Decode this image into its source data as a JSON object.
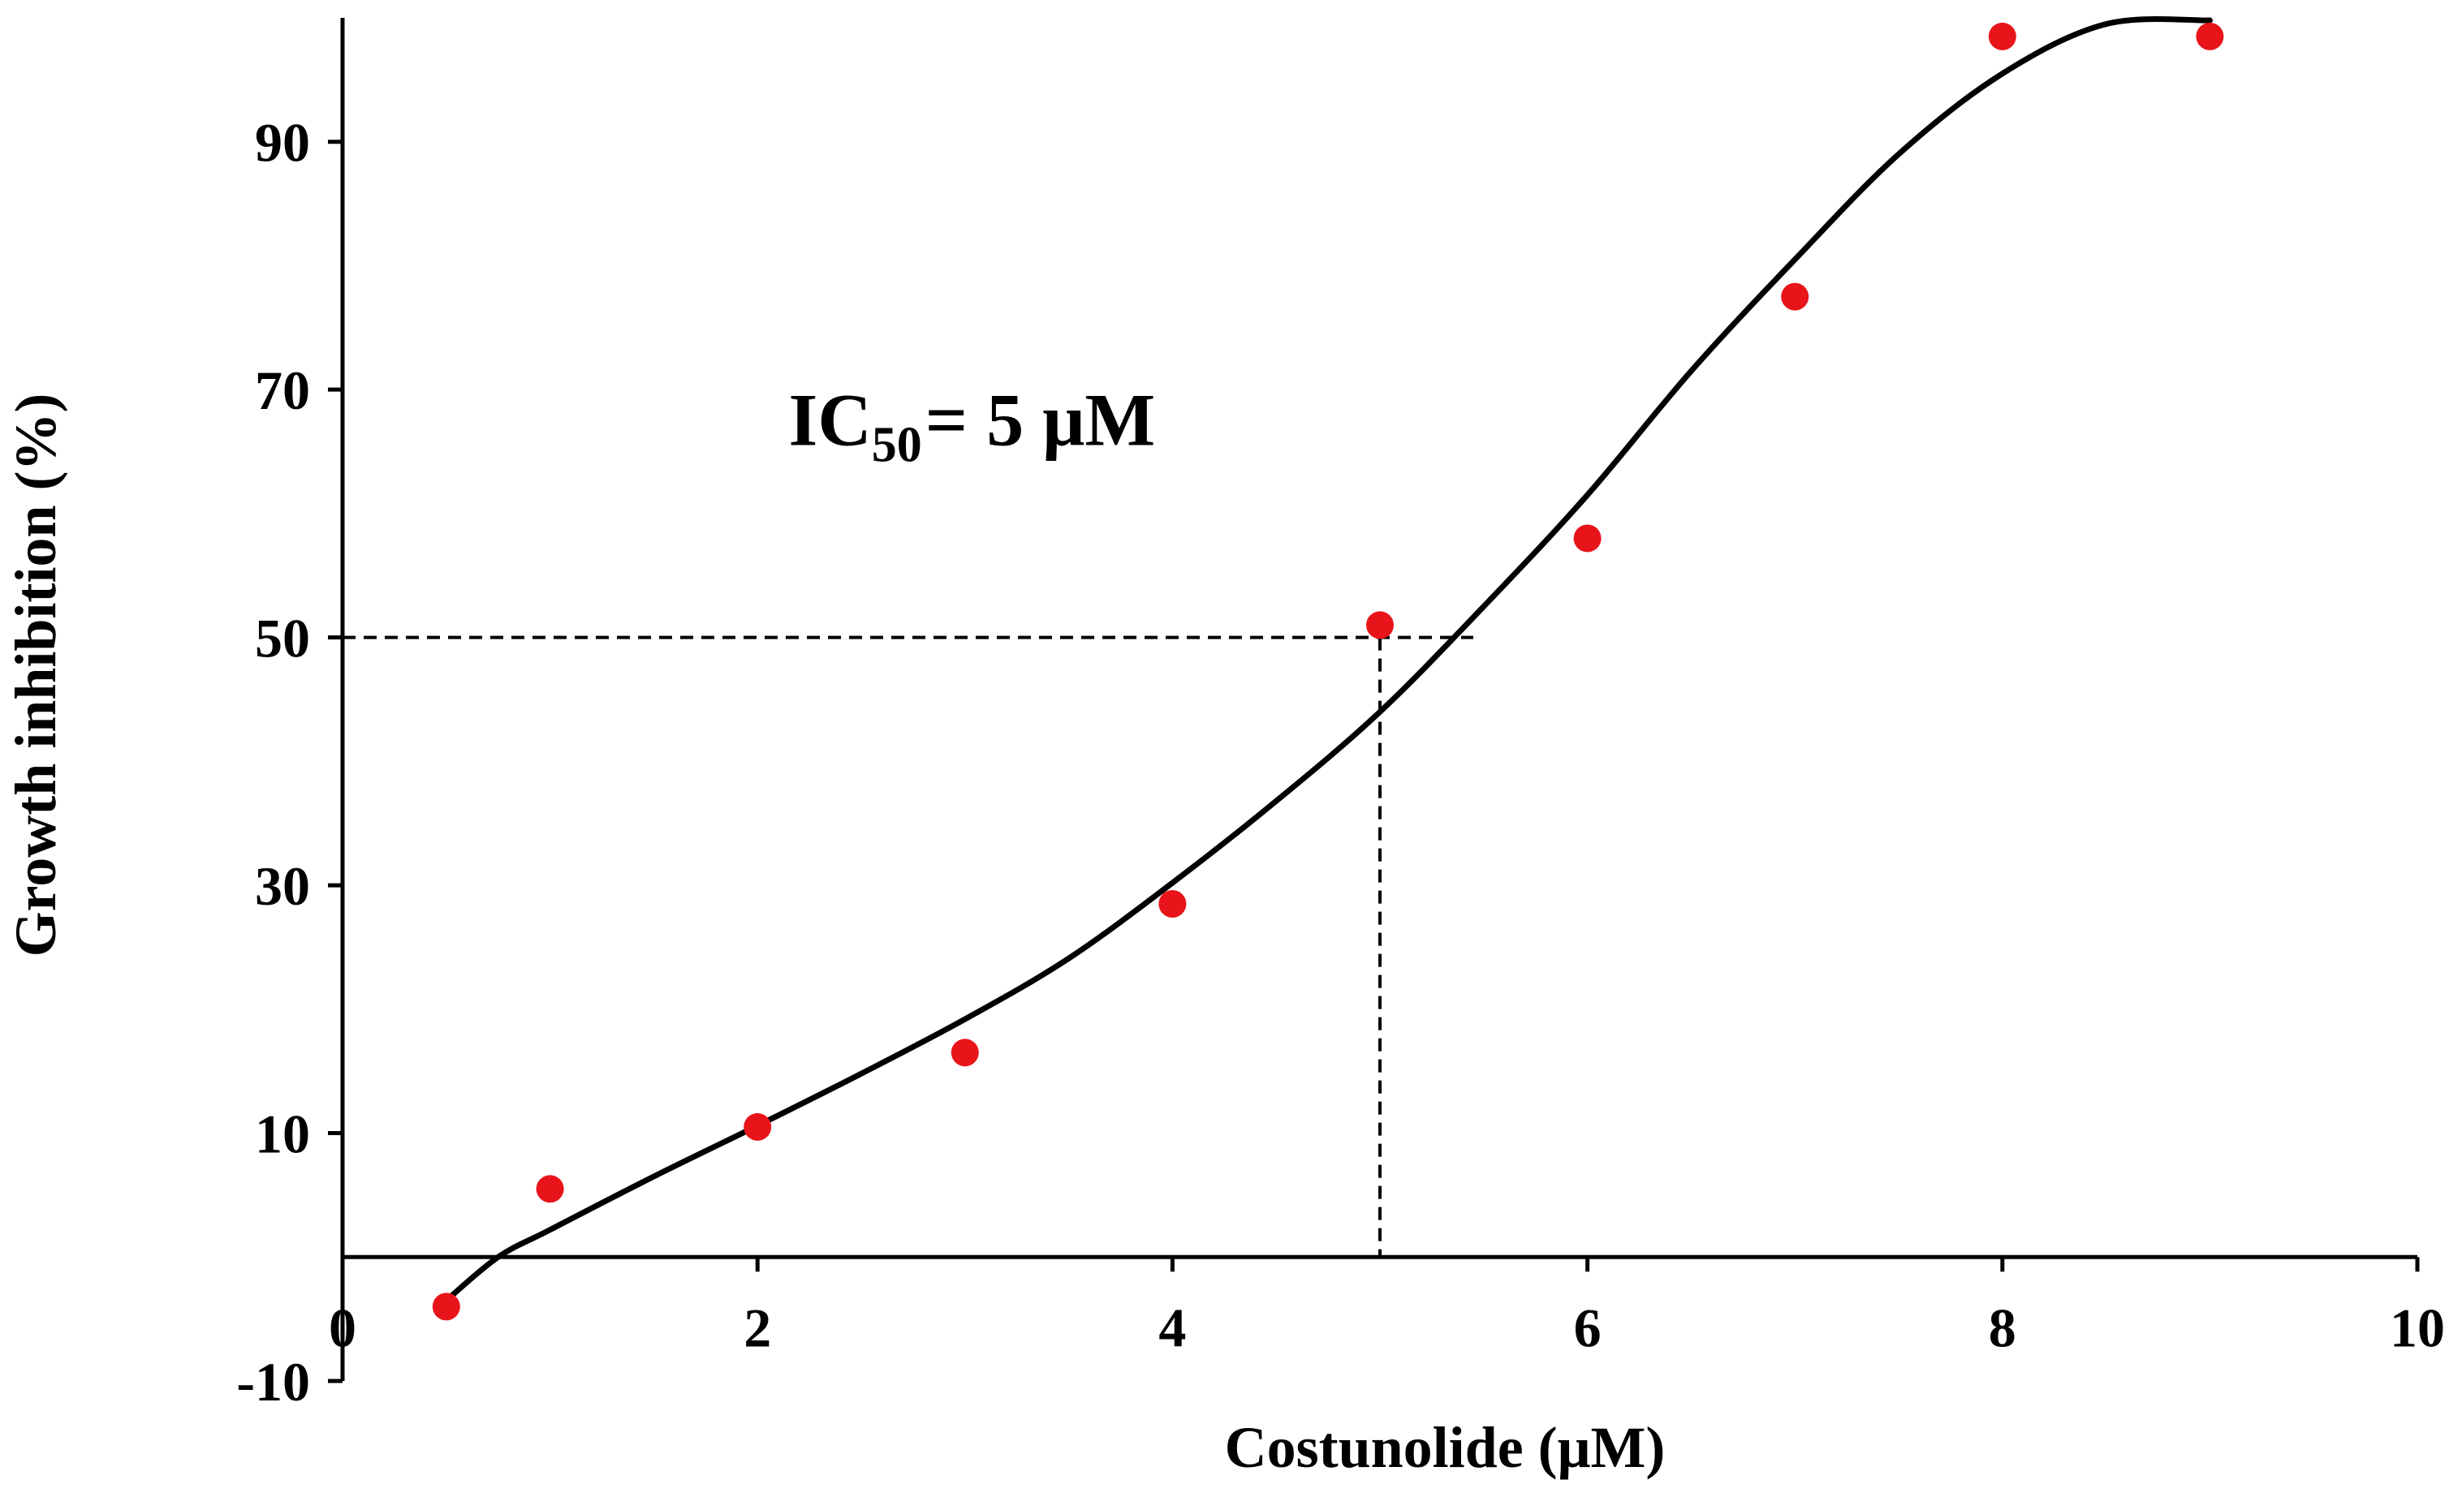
{
  "chart_data": {
    "type": "scatter",
    "title": "",
    "xlabel": "Costunolide (μM)",
    "ylabel": "Growth inhibition (%)",
    "xlim": [
      0,
      10
    ],
    "ylim": [
      -10,
      100
    ],
    "x_ticks": [
      0,
      2,
      4,
      6,
      8,
      10
    ],
    "y_ticks": [
      -10,
      10,
      30,
      50,
      70,
      90
    ],
    "x_tick_labels": [
      "0",
      "2",
      "4",
      "6",
      "8",
      "10"
    ],
    "y_tick_labels": [
      "-10",
      "10",
      "30",
      "50",
      "70",
      "90"
    ],
    "grid": false,
    "legend": "none",
    "series": [
      {
        "kind": "points",
        "color": "#e8141a",
        "x": [
          0.5,
          1,
          2,
          3,
          4,
          5,
          6,
          7,
          8,
          9
        ],
        "y": [
          -4,
          5.5,
          10.5,
          16.5,
          28.5,
          51,
          58,
          77.5,
          98.5,
          98.5
        ]
      },
      {
        "kind": "fitted-curve",
        "color": "#000000",
        "x": [
          0.5,
          0.75,
          1,
          1.5,
          2,
          2.5,
          3,
          3.5,
          4,
          4.5,
          5,
          5.5,
          6,
          6.5,
          7,
          7.5,
          8,
          8.5,
          9
        ],
        "y": [
          -3.5,
          0,
          2.2,
          6.5,
          10.6,
          14.8,
          19.2,
          24.1,
          30.2,
          36.8,
          44,
          52.5,
          61.5,
          71.5,
          80.5,
          89,
          95.5,
          99.5,
          99.8
        ]
      }
    ],
    "reference_lines": {
      "color": "#000000",
      "style": "dashed",
      "horizontal_y": 50,
      "horizontal_x_end": 5.45,
      "vertical_x": 5
    },
    "annotation": {
      "prefix": "IC",
      "subscript": "50",
      "suffix": "= 5 μM",
      "x": 2.15,
      "y": 67.5
    }
  }
}
